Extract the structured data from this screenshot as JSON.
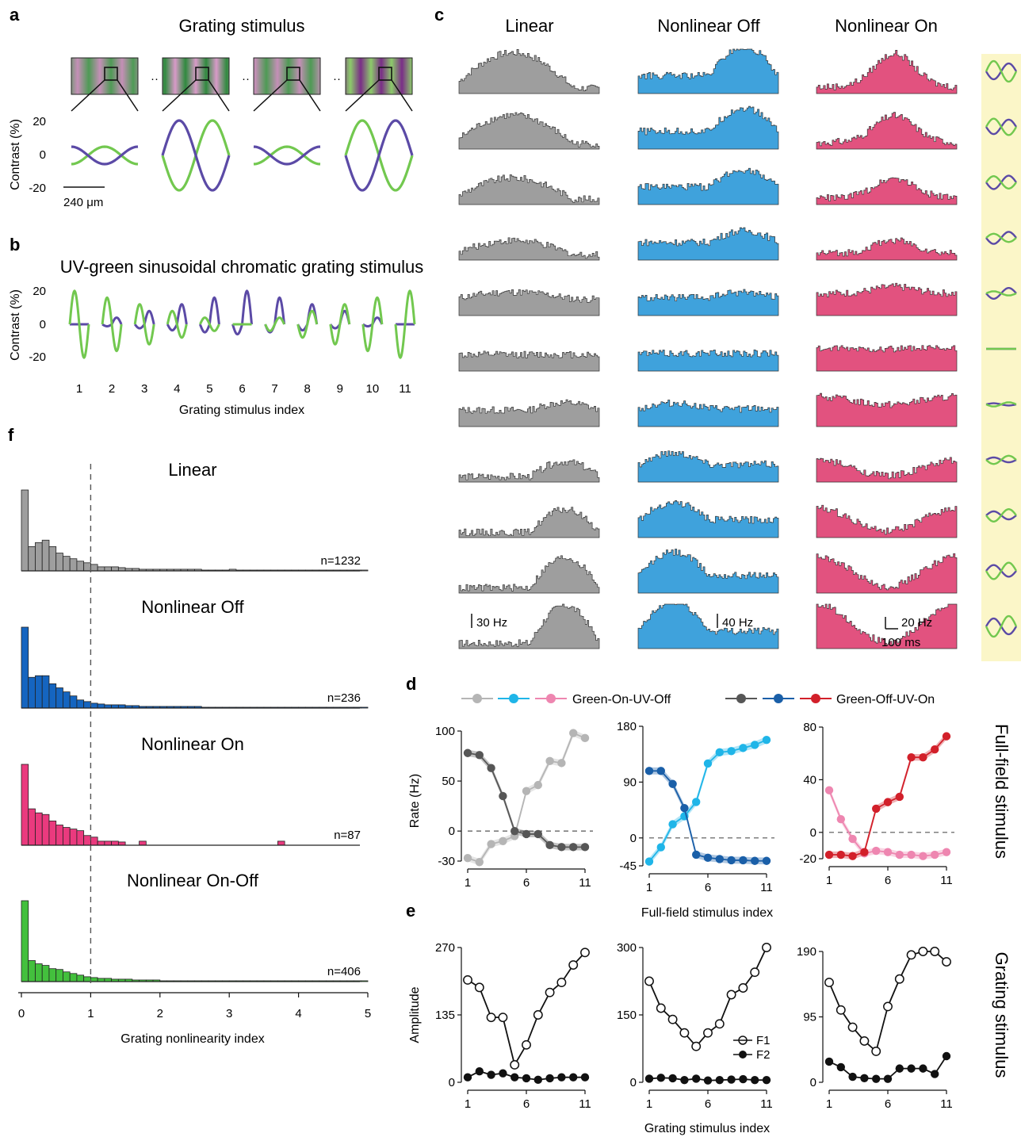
{
  "panels": {
    "a": {
      "label": "a",
      "title": "Grating stimulus",
      "ylabel": "Contrast (%)",
      "yticks": [
        "20",
        "0",
        "-20"
      ],
      "scalebar": "240 μm",
      "ellipsis": "··",
      "amplitudes": [
        0.5,
        1.0,
        0.5,
        1.0
      ],
      "green_sign": [
        1,
        -1,
        1,
        1
      ]
    },
    "b": {
      "label": "b",
      "title": "UV-green sinusoidal chromatic grating stimulus",
      "ylabel": "Contrast (%)",
      "yticks": [
        "20",
        "0",
        "-20"
      ],
      "xlabel": "Grating stimulus index",
      "xticks": [
        "1",
        "2",
        "3",
        "4",
        "5",
        "6",
        "7",
        "8",
        "9",
        "10",
        "11"
      ],
      "green_amp": [
        20,
        16,
        12,
        8,
        4,
        0,
        -4,
        -8,
        -12,
        -16,
        -20
      ],
      "uv_amp": [
        0,
        4,
        8,
        12,
        16,
        20,
        16,
        12,
        8,
        4,
        0
      ]
    },
    "c": {
      "label": "c",
      "columns": [
        {
          "title": "Linear",
          "color": "#9e9e9e",
          "scale": "30 Hz"
        },
        {
          "title": "Nonlinear Off",
          "color": "#3fa2dc",
          "scale": "40 Hz"
        },
        {
          "title": "Nonlinear On",
          "color": "#e2527f",
          "scale": "20 Hz"
        }
      ],
      "time_scale": "100 ms",
      "side_color": "#fbf6c8"
    },
    "d": {
      "label": "d",
      "legend": {
        "group1": "Green-On-UV-Off",
        "group2": "Green-Off-UV-On"
      },
      "ylabel": "Rate (Hz)",
      "xlabel": "Full-field stimulus index",
      "side_label": "Full-field stimulus",
      "xticks": [
        "1",
        "6",
        "11"
      ]
    },
    "e": {
      "label": "e",
      "ylabel": "Amplitude",
      "xlabel": "Grating stimulus index",
      "side_label": "Grating stimulus",
      "xticks": [
        "1",
        "6",
        "11"
      ],
      "legend": [
        "F1",
        "F2"
      ]
    },
    "f": {
      "label": "f",
      "xlabel": "Grating nonlinearity index",
      "xticks": [
        "0",
        "1",
        "2",
        "3",
        "4",
        "5"
      ]
    }
  },
  "chart_data": [
    {
      "id": "d1",
      "type": "line",
      "ylim": [
        -30,
        100
      ],
      "yticks": [
        100,
        50,
        0,
        -30
      ],
      "x": [
        1,
        2,
        3,
        4,
        5,
        6,
        7,
        8,
        9,
        10,
        11
      ],
      "series": [
        {
          "name": "Green-On-UV-Off",
          "color": "#b5b5b5",
          "values": [
            -27,
            -31,
            -13,
            -10,
            -5,
            40,
            46,
            70,
            68,
            98,
            93
          ]
        },
        {
          "name": "Green-Off-UV-On",
          "color": "#565656",
          "values": [
            78,
            76,
            63,
            35,
            0,
            -3,
            -3,
            -14,
            -16,
            -16,
            -16
          ]
        }
      ]
    },
    {
      "id": "d2",
      "type": "line",
      "ylim": [
        -45,
        180
      ],
      "yticks": [
        180,
        90,
        0,
        -45
      ],
      "x": [
        1,
        2,
        3,
        4,
        5,
        6,
        7,
        8,
        9,
        10,
        11
      ],
      "series": [
        {
          "name": "Green-On-UV-Off",
          "color": "#1fb5e8",
          "values": [
            -38,
            -15,
            22,
            35,
            58,
            120,
            138,
            140,
            145,
            150,
            158
          ]
        },
        {
          "name": "Green-Off-UV-On",
          "color": "#1a5fa8",
          "values": [
            108,
            108,
            87,
            48,
            -27,
            -32,
            -34,
            -36,
            -36,
            -37,
            -37
          ]
        }
      ]
    },
    {
      "id": "d3",
      "type": "line",
      "ylim": [
        -20,
        80
      ],
      "yticks": [
        80,
        40,
        0,
        -20
      ],
      "x": [
        1,
        2,
        3,
        4,
        5,
        6,
        7,
        8,
        9,
        10,
        11
      ],
      "series": [
        {
          "name": "Green-On-UV-Off",
          "color": "#ee86b0",
          "values": [
            32,
            10,
            -5,
            -16,
            -14,
            -15,
            -17,
            -17,
            -18,
            -17,
            -15
          ]
        },
        {
          "name": "Green-Off-UV-On",
          "color": "#d2202a",
          "values": [
            -17,
            -17,
            -18,
            -15,
            18,
            23,
            27,
            57,
            57,
            63,
            73
          ]
        }
      ]
    },
    {
      "id": "e1",
      "type": "line",
      "ylim": [
        0,
        270
      ],
      "yticks": [
        270,
        135,
        0
      ],
      "x": [
        1,
        2,
        3,
        4,
        5,
        6,
        7,
        8,
        9,
        10,
        11
      ],
      "series": [
        {
          "name": "F1",
          "values": [
            205,
            190,
            130,
            130,
            35,
            75,
            135,
            180,
            200,
            235,
            260
          ]
        },
        {
          "name": "F2",
          "values": [
            10,
            22,
            15,
            18,
            10,
            8,
            5,
            8,
            10,
            10,
            10
          ]
        }
      ]
    },
    {
      "id": "e2",
      "type": "line",
      "ylim": [
        0,
        300
      ],
      "yticks": [
        300,
        150,
        0
      ],
      "x": [
        1,
        2,
        3,
        4,
        5,
        6,
        7,
        8,
        9,
        10,
        11
      ],
      "series": [
        {
          "name": "F1",
          "values": [
            225,
            165,
            140,
            110,
            80,
            110,
            130,
            195,
            210,
            245,
            300
          ]
        },
        {
          "name": "F2",
          "values": [
            8,
            10,
            9,
            5,
            8,
            4,
            5,
            6,
            7,
            5,
            5
          ]
        }
      ]
    },
    {
      "id": "e3",
      "type": "line",
      "ylim": [
        0,
        190
      ],
      "yticks": [
        190,
        95,
        0
      ],
      "x": [
        1,
        2,
        3,
        4,
        5,
        6,
        7,
        8,
        9,
        10,
        11
      ],
      "series": [
        {
          "name": "F1",
          "values": [
            145,
            105,
            80,
            60,
            45,
            110,
            150,
            185,
            190,
            190,
            175
          ]
        },
        {
          "name": "F2",
          "values": [
            30,
            22,
            8,
            6,
            5,
            5,
            20,
            20,
            20,
            12,
            38
          ]
        }
      ]
    },
    {
      "id": "f1",
      "type": "bar",
      "title": "Linear",
      "n": "n=1232",
      "color": "#9e9e9e",
      "xlim": [
        0,
        5
      ],
      "bin_width": 0.1,
      "values": [
        100,
        30,
        35,
        38,
        30,
        22,
        18,
        15,
        12,
        10,
        8,
        5,
        5,
        5,
        4,
        3,
        3,
        2,
        2,
        2,
        2,
        2,
        2,
        2,
        2,
        2,
        1,
        1,
        1,
        1,
        2,
        1,
        1,
        1,
        1,
        1,
        1,
        1,
        1,
        1,
        1,
        1,
        1,
        1,
        1,
        1,
        1,
        1,
        1,
        1
      ]
    },
    {
      "id": "f2",
      "type": "bar",
      "title": "Nonlinear Off",
      "n": "n=236",
      "color": "#1565c0",
      "xlim": [
        0,
        5
      ],
      "bin_width": 0.1,
      "values": [
        100,
        38,
        40,
        40,
        30,
        25,
        20,
        15,
        10,
        8,
        6,
        5,
        4,
        4,
        4,
        3,
        3,
        2,
        2,
        2,
        2,
        2,
        2,
        2,
        2,
        2,
        1,
        1,
        1,
        1,
        1,
        1,
        1,
        1,
        1,
        1,
        1,
        1,
        1,
        1,
        1,
        1,
        1,
        1,
        1,
        1,
        1,
        1,
        1,
        1
      ]
    },
    {
      "id": "f3",
      "type": "bar",
      "title": "Nonlinear On",
      "n": "n=87",
      "color": "#ea3a7e",
      "xlim": [
        0,
        5
      ],
      "bin_width": 0.1,
      "values": [
        100,
        45,
        40,
        38,
        30,
        25,
        22,
        20,
        18,
        12,
        10,
        5,
        5,
        5,
        4,
        0,
        0,
        5,
        0,
        0,
        0,
        0,
        0,
        0,
        0,
        0,
        0,
        0,
        0,
        0,
        0,
        0,
        0,
        0,
        0,
        0,
        0,
        5,
        0,
        0,
        0,
        0,
        0,
        0,
        0,
        0,
        0,
        0,
        0,
        0
      ]
    },
    {
      "id": "f4",
      "type": "bar",
      "title": "Nonlinear On-Off",
      "n": "n=406",
      "color": "#43c03d",
      "xlim": [
        0,
        5
      ],
      "bin_width": 0.1,
      "values": [
        100,
        26,
        22,
        20,
        16,
        15,
        12,
        10,
        8,
        6,
        5,
        4,
        4,
        3,
        3,
        3,
        2,
        2,
        2,
        2,
        1,
        1,
        1,
        1,
        1,
        1,
        1,
        1,
        1,
        1,
        1,
        1,
        1,
        1,
        1,
        1,
        1,
        1,
        1,
        1,
        1,
        1,
        1,
        1,
        1,
        1,
        1,
        1,
        1,
        1
      ]
    }
  ]
}
